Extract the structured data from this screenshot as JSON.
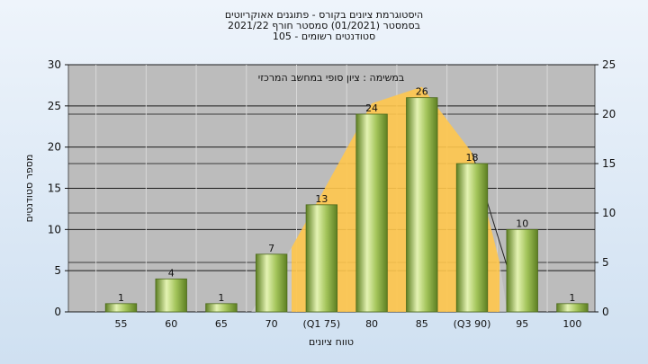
{
  "chart_data": {
    "type": "bar",
    "title_lines": [
      "היסטוגרמת ציונים בקורס - פתוגנים אאוקריוטים",
      "בסמסטר  (01/2021)  סמסטר חורף 2021/22",
      "סטודנטים רשומים - 105"
    ],
    "subtitle": "במשימה : ציון סופי במחשב המרכזי",
    "xlabel": "טווח ציונים",
    "ylabel": "מספר סטודנטים",
    "categories": [
      "55",
      "60",
      "65",
      "70",
      "(Q1 75)",
      "80",
      "85",
      "(Q3 90)",
      "95",
      "100"
    ],
    "values": [
      1,
      4,
      1,
      7,
      13,
      24,
      26,
      18,
      10,
      1
    ],
    "ylim": [
      0,
      30
    ],
    "yticks": [
      0,
      5,
      10,
      15,
      20,
      25,
      30
    ],
    "y2lim": [
      0,
      25
    ],
    "y2ticks": [
      0,
      5,
      10,
      15,
      20,
      25
    ],
    "grid": true,
    "colors": {
      "bar_light": "#e4f3b3",
      "bar_mid": "#a3c45a",
      "bar_dark": "#5d7f22",
      "iqr_fill": "#ffc74d",
      "plot_bg": "#bcbcbc",
      "grid": "#1a1a1a"
    }
  }
}
